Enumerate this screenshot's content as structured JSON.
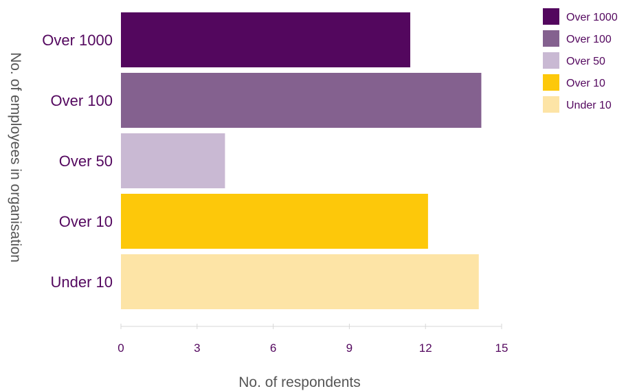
{
  "chart_data": {
    "type": "bar",
    "orientation": "horizontal",
    "categories": [
      "Over 1000",
      "Over 100",
      "Over 50",
      "Over 10",
      "Under 10"
    ],
    "values": [
      11.4,
      14.2,
      4.1,
      12.1,
      14.1
    ],
    "colors": [
      "#53075e",
      "#84618f",
      "#c9b9d3",
      "#fdc80a",
      "#fde4a6"
    ],
    "xlabel": "No. of respondents",
    "ylabel": "No. of employees in organisation",
    "xlim": [
      0,
      15
    ],
    "xticks": [
      "0",
      "3",
      "6",
      "9",
      "12",
      "15"
    ],
    "xtick_values": [
      0,
      3,
      6,
      9,
      12,
      15
    ],
    "grid": false,
    "legend": {
      "position": "top-right",
      "entries": [
        "Over 1000",
        "Over 100",
        "Over 50",
        "Over 10",
        "Under 10"
      ]
    },
    "label_color": "#53075e",
    "axis_title_color": "#555555"
  }
}
